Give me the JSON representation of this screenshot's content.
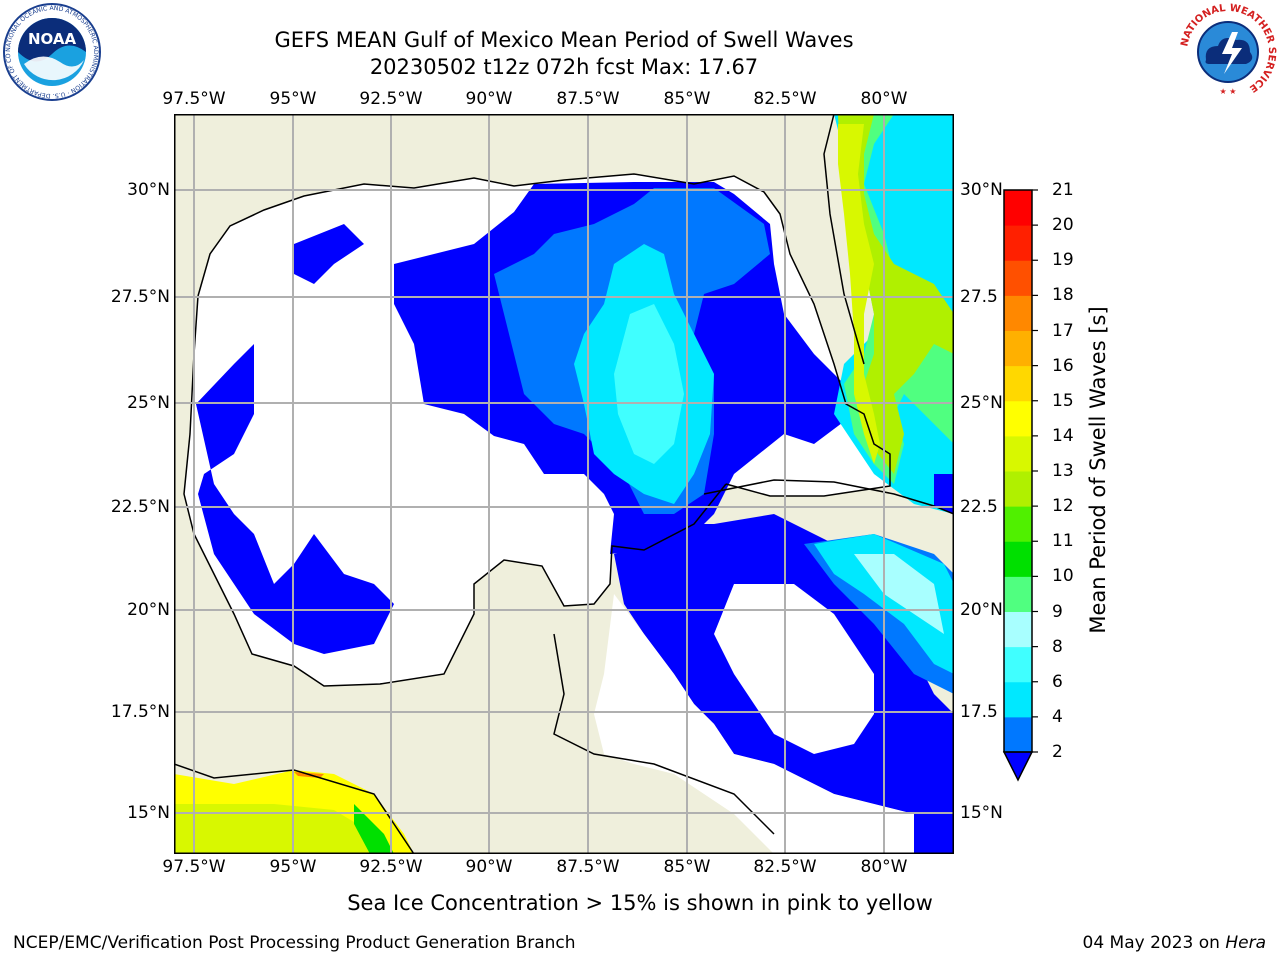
{
  "title": {
    "line1": "GEFS MEAN Gulf of Mexico Mean Period of Swell Waves",
    "line2": "20230502 t12z 072h fcst   Max: 17.67"
  },
  "map": {
    "lon_labels": [
      "97.5°W",
      "95°W",
      "92.5°W",
      "90°W",
      "87.5°W",
      "85°W",
      "82.5°W",
      "80°W"
    ],
    "lat_labels_left": [
      "30°N",
      "27.5°N",
      "25°N",
      "22.5°N",
      "20°N",
      "17.5°N",
      "15°N"
    ],
    "lat_labels_right": [
      "30°N",
      "27.5",
      "25°N",
      "22.5",
      "20°N",
      "17.5",
      "15°N"
    ],
    "land_color": "#efefdc",
    "grid_color": "#b0b0b0"
  },
  "colorbar": {
    "label": "Mean Period of Swell Waves [s]",
    "ticks": [
      "2",
      "4",
      "6",
      "8",
      "9",
      "10",
      "11",
      "12",
      "13",
      "14",
      "15",
      "16",
      "17",
      "18",
      "19",
      "20",
      "21"
    ],
    "colors": [
      "#0000ff",
      "#0078ff",
      "#00e8ff",
      "#40ffff",
      "#a8ffff",
      "#50ff80",
      "#00e000",
      "#50f000",
      "#b0f000",
      "#d8f800",
      "#ffff00",
      "#ffd800",
      "#ffb000",
      "#ff8800",
      "#ff5000",
      "#ff2000",
      "#ff0000"
    ]
  },
  "footnote": "Sea Ice Concentration > 15% is shown in pink to yellow",
  "credit": "NCEP/EMC/Verification Post Processing Product Generation Branch",
  "date_prefix": "04 May 2023 on ",
  "date_machine": "Hera",
  "logos": {
    "noaa_text": "NOAA",
    "noaa_ring": "NATIONAL OCEANIC AND ATMOSPHERIC ADMINISTRATION · U.S. DEPARTMENT OF COMMERCE",
    "nws_ring": "NATIONAL WEATHER SERVICE"
  }
}
